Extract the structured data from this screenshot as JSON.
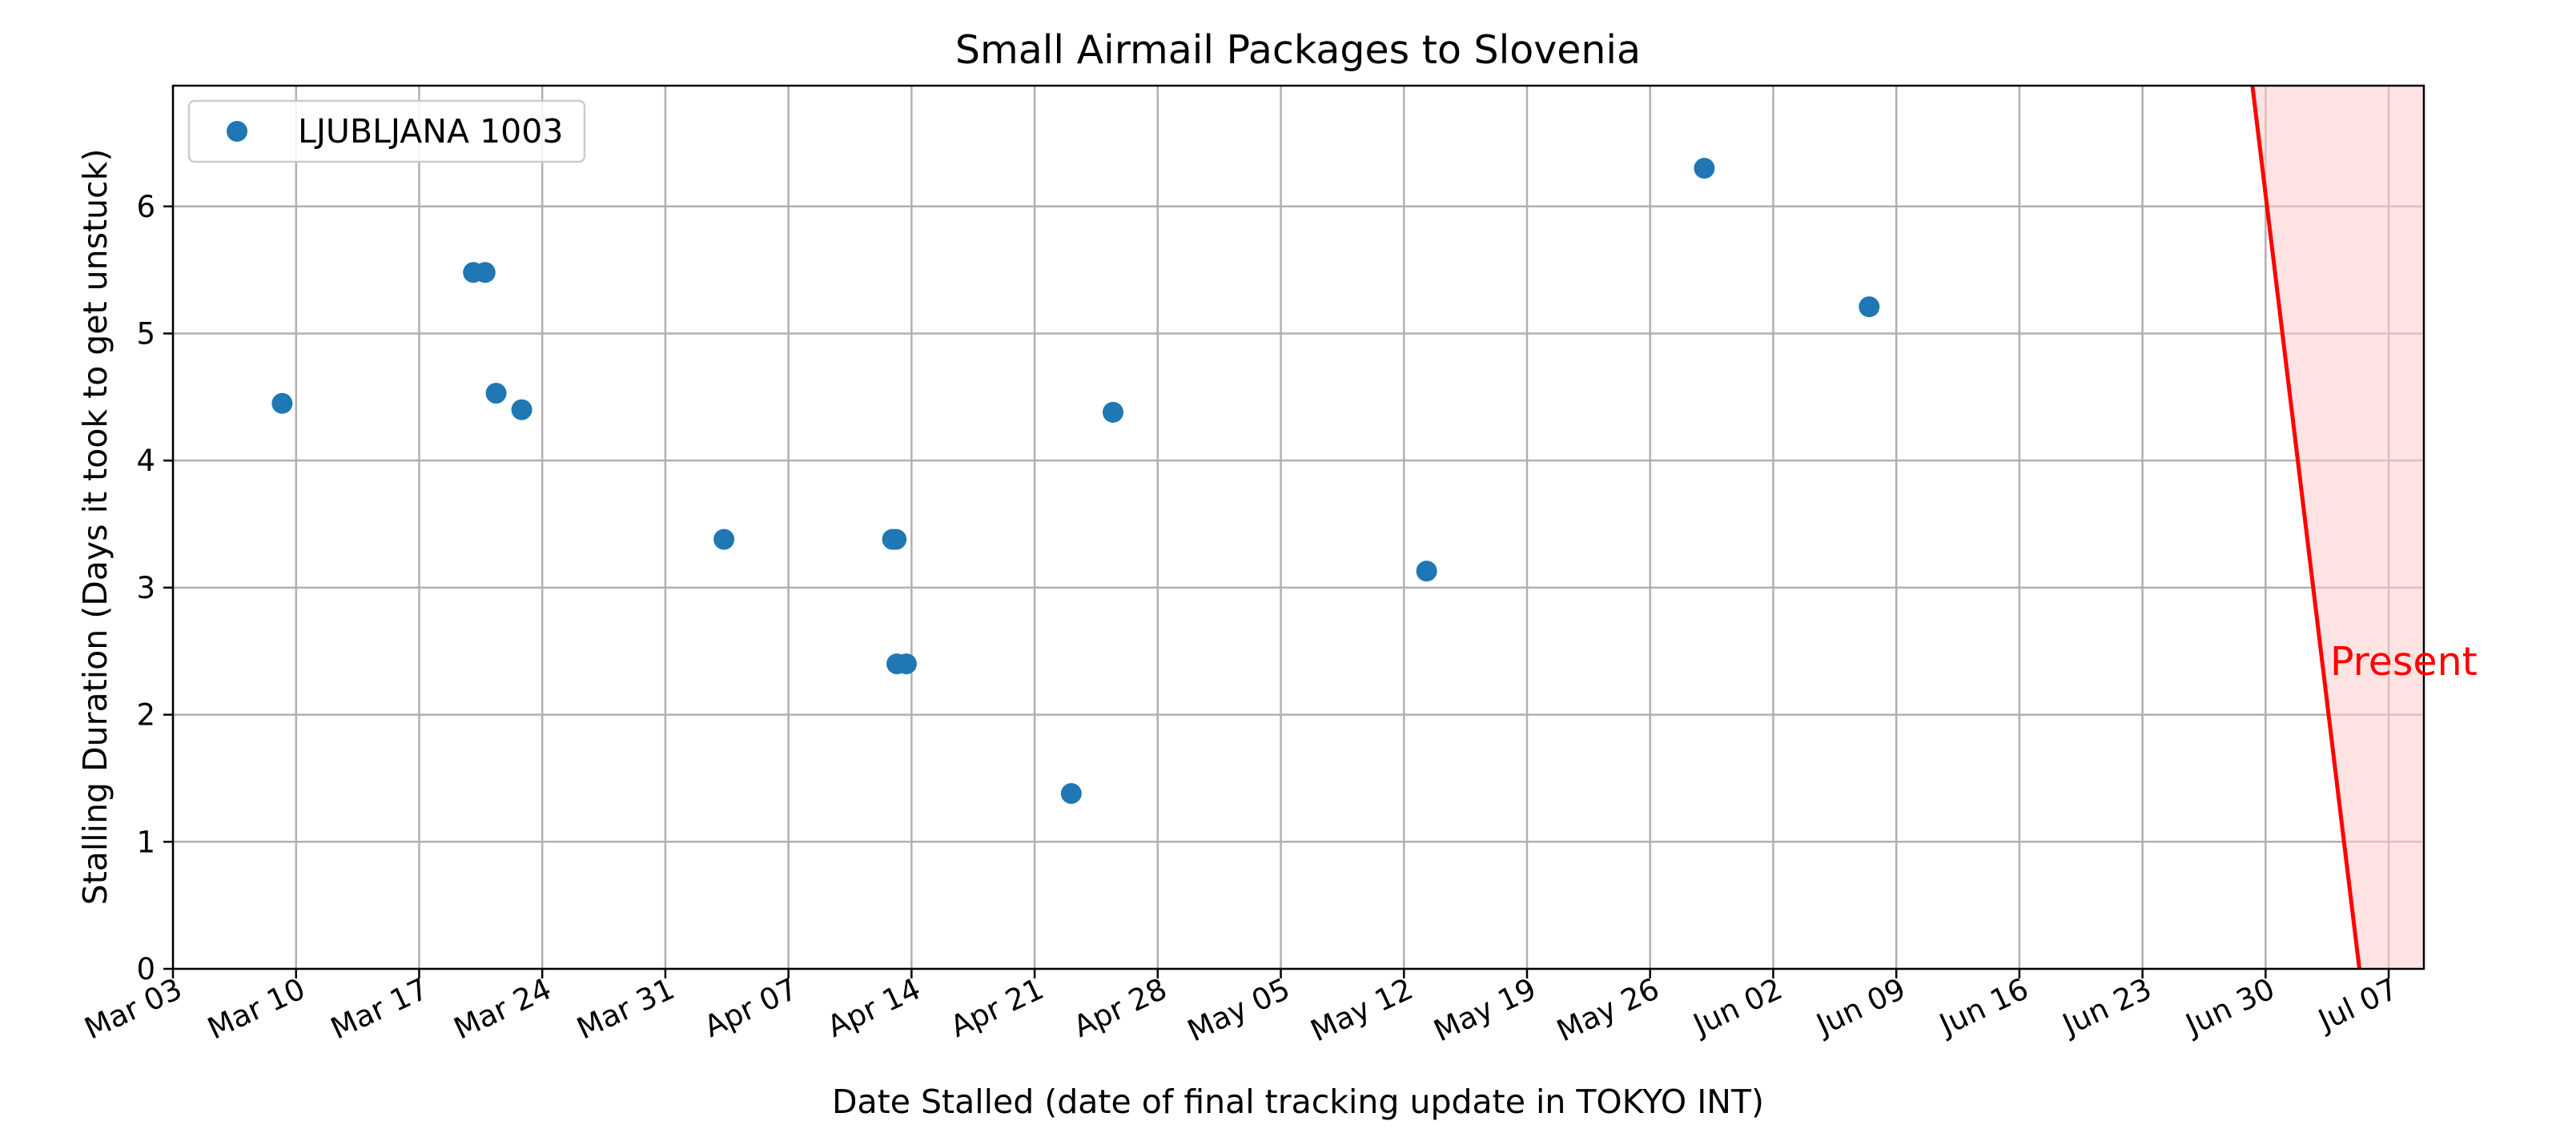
{
  "chart_data": {
    "type": "scatter",
    "title": "Small Airmail Packages to Slovenia",
    "xlabel": "Date Stalled (date of final tracking update in TOKYO INT)",
    "ylabel": "Stalling Duration (Days it took to get unstuck)",
    "x_axis_kind": "date",
    "xlim": [
      "2024-03-03",
      "2024-07-09"
    ],
    "ylim": [
      0,
      6.95
    ],
    "x_tick_dates": [
      "2024-03-03",
      "2024-03-10",
      "2024-03-17",
      "2024-03-24",
      "2024-03-31",
      "2024-04-07",
      "2024-04-14",
      "2024-04-21",
      "2024-04-28",
      "2024-05-05",
      "2024-05-12",
      "2024-05-19",
      "2024-05-26",
      "2024-06-02",
      "2024-06-09",
      "2024-06-16",
      "2024-06-23",
      "2024-06-30",
      "2024-07-07"
    ],
    "x_tick_labels": [
      "Mar 03",
      "Mar 10",
      "Mar 17",
      "Mar 24",
      "Mar 31",
      "Apr 07",
      "Apr 14",
      "Apr 21",
      "Apr 28",
      "May 05",
      "May 12",
      "May 19",
      "May 26",
      "Jun 02",
      "Jun 09",
      "Jun 16",
      "Jun 23",
      "Jun 30",
      "Jul 07"
    ],
    "y_ticks": [
      0,
      1,
      2,
      3,
      4,
      5,
      6
    ],
    "y_tick_labels": [
      "0",
      "1",
      "2",
      "3",
      "4",
      "5",
      "6"
    ],
    "grid": true,
    "legend_position": "top-left",
    "series": [
      {
        "name": "LJUBLJANA 1003",
        "color": "#1f77b4",
        "points": [
          {
            "x": "2024-03-09 05:00",
            "y": 4.45
          },
          {
            "x": "2024-03-20 02:00",
            "y": 5.48
          },
          {
            "x": "2024-03-20 18:00",
            "y": 5.48
          },
          {
            "x": "2024-03-21 09:00",
            "y": 4.53
          },
          {
            "x": "2024-03-22 20:00",
            "y": 4.4
          },
          {
            "x": "2024-04-03 08:00",
            "y": 3.38
          },
          {
            "x": "2024-04-12 22:00",
            "y": 3.38
          },
          {
            "x": "2024-04-13 03:00",
            "y": 3.38
          },
          {
            "x": "2024-04-13 04:00",
            "y": 2.4
          },
          {
            "x": "2024-04-13 17:00",
            "y": 2.4
          },
          {
            "x": "2024-04-23 02:00",
            "y": 1.38
          },
          {
            "x": "2024-04-25 11:00",
            "y": 4.38
          },
          {
            "x": "2024-05-13 07:00",
            "y": 3.13
          },
          {
            "x": "2024-05-29 02:00",
            "y": 6.3
          },
          {
            "x": "2024-06-07 11:00",
            "y": 5.21
          }
        ]
      }
    ],
    "present_marker": {
      "label": "Present",
      "color": "#ff0000",
      "shade_color": "#ffcccc",
      "line_top": {
        "x": "2024-06-29 06:00",
        "y": 6.95
      },
      "line_bottom": {
        "x": "2024-07-05 08:00",
        "y": 0
      }
    }
  }
}
